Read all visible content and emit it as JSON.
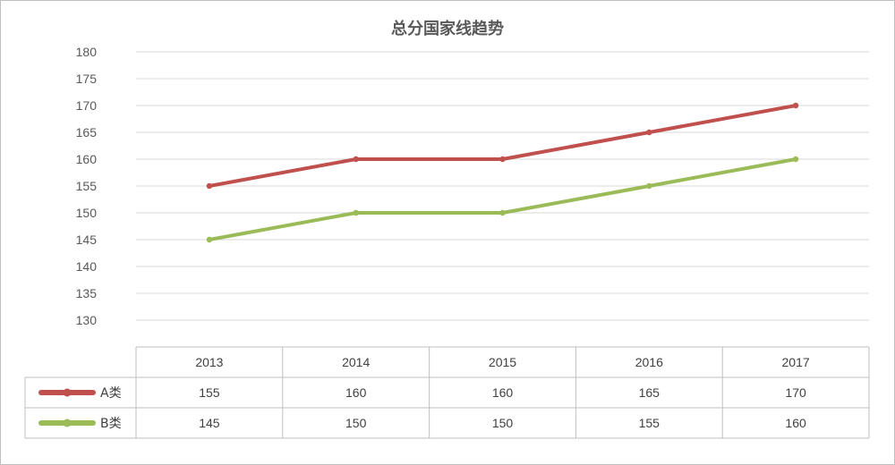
{
  "chart_data": {
    "type": "line",
    "title": "总分国家线趋势",
    "categories": [
      "2013",
      "2014",
      "2015",
      "2016",
      "2017"
    ],
    "series": [
      {
        "name": "A类",
        "values": [
          155,
          160,
          160,
          165,
          170
        ],
        "color": "#c0504d"
      },
      {
        "name": "B类",
        "values": [
          145,
          150,
          150,
          155,
          160
        ],
        "color": "#9bbb59"
      }
    ],
    "ylim": [
      130,
      180
    ],
    "yticks": [
      180,
      175,
      170,
      165,
      160,
      155,
      150,
      145,
      140,
      135,
      130
    ],
    "grid": true,
    "legend": "data-table-below"
  }
}
